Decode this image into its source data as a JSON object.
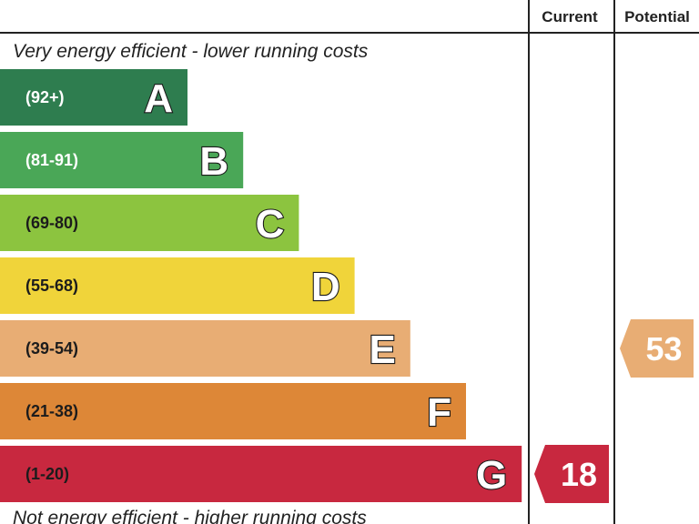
{
  "chart_data": {
    "type": "bar",
    "columns": {
      "current": "Current",
      "potential": "Potential"
    },
    "top_caption": "Very energy efficient - lower running costs",
    "bottom_caption": "Not energy efficient - higher running costs",
    "bands": [
      {
        "letter": "A",
        "range": "(92+)",
        "min": 92,
        "max": 100,
        "color": "#2e7d4f",
        "dark_text": false
      },
      {
        "letter": "B",
        "range": "(81-91)",
        "min": 81,
        "max": 91,
        "color": "#4aa757",
        "dark_text": false
      },
      {
        "letter": "C",
        "range": "(69-80)",
        "min": 69,
        "max": 80,
        "color": "#8cc43f",
        "dark_text": true
      },
      {
        "letter": "D",
        "range": "(55-68)",
        "min": 55,
        "max": 68,
        "color": "#f0d43a",
        "dark_text": true
      },
      {
        "letter": "E",
        "range": "(39-54)",
        "min": 39,
        "max": 54,
        "color": "#e8ad74",
        "dark_text": true
      },
      {
        "letter": "F",
        "range": "(21-38)",
        "min": 21,
        "max": 38,
        "color": "#dd8737",
        "dark_text": true
      },
      {
        "letter": "G",
        "range": "(1-20)",
        "min": 1,
        "max": 20,
        "color": "#c8283f",
        "dark_text": true
      }
    ],
    "current": {
      "value": 18,
      "band": "G",
      "color": "#c8283f"
    },
    "potential": {
      "value": 53,
      "band": "E",
      "color": "#e8ad74"
    }
  }
}
